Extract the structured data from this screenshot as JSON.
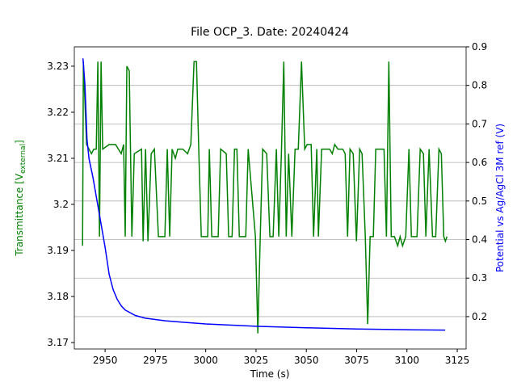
{
  "chart_data": {
    "type": "line",
    "title": "File OCP_3. Date: 20240424",
    "xlabel": "Time (s)",
    "ylabel_parts": [
      "Transmittance [V",
      "external",
      "]"
    ],
    "ylabel_color": "#008000",
    "y2label": "Potential vs Ag/AgCl 3M ref (V)",
    "y2label_color": "#0000ff",
    "xlim": [
      2934.7,
      3129.4
    ],
    "xticks": [
      2950,
      2975,
      3000,
      3025,
      3050,
      3075,
      3100,
      3125
    ],
    "ylim": [
      3.1686,
      3.2342
    ],
    "yticks": [
      3.17,
      3.18,
      3.19,
      3.2,
      3.21,
      3.22,
      3.23
    ],
    "y2lim": [
      0.116,
      0.9
    ],
    "y2ticks": [
      0.2,
      0.3,
      0.4,
      0.5,
      0.6,
      0.7,
      0.8,
      0.9
    ],
    "grid": "y2",
    "series": [
      {
        "name": "Transmittance",
        "color": "#008000",
        "axis": "y",
        "x": [
          2938.8,
          2939.2,
          2940.8,
          2942.0,
          2943.2,
          2944.4,
          2945.6,
          2946.4,
          2947.2,
          2948.0,
          2948.8,
          2952.0,
          2955.2,
          2958.0,
          2959.2,
          2960.0,
          2960.8,
          2962.0,
          2963.3,
          2964.5,
          2968.1,
          2968.9,
          2970.1,
          2971.3,
          2972.9,
          2974.5,
          2976.5,
          2979.7,
          2980.9,
          2982.1,
          2983.3,
          2984.9,
          2986.1,
          2988.6,
          2991.0,
          2992.6,
          2994.2,
          2995.4,
          2996.6,
          2997.8,
          3001.0,
          3001.8,
          3003.0,
          3006.2,
          3007.4,
          3010.2,
          3011.4,
          3013.1,
          3014.3,
          3015.5,
          3016.7,
          3019.9,
          3021.1,
          3024.7,
          3025.9,
          3027.1,
          3028.3,
          3030.3,
          3031.9,
          3033.5,
          3035.1,
          3036.3,
          3037.6,
          3038.8,
          3040.0,
          3041.2,
          3042.8,
          3044.4,
          3046.0,
          3047.6,
          3049.2,
          3050.4,
          3052.4,
          3053.6,
          3055.2,
          3056.0,
          3057.6,
          3059.2,
          3061.6,
          3062.9,
          3064.1,
          3065.7,
          3068.1,
          3069.3,
          3070.5,
          3071.7,
          3073.3,
          3074.9,
          3076.5,
          3077.7,
          3079.3,
          3080.5,
          3081.7,
          3083.3,
          3084.5,
          3086.1,
          3088.6,
          3089.8,
          3091.0,
          3092.2,
          3093.8,
          3095.4,
          3096.6,
          3097.8,
          3099.4,
          3101.0,
          3102.2,
          3105.0,
          3106.6,
          3108.2,
          3109.4,
          3111.0,
          3112.7,
          3114.3,
          3115.9,
          3117.1,
          3118.3,
          3119.1,
          3119.9
        ],
        "values": [
          3.191,
          3.231,
          3.213,
          3.212,
          3.211,
          3.212,
          3.212,
          3.231,
          3.193,
          3.231,
          3.212,
          3.213,
          3.213,
          3.211,
          3.213,
          3.193,
          3.23,
          3.229,
          3.193,
          3.211,
          3.212,
          3.192,
          3.212,
          3.192,
          3.211,
          3.212,
          3.193,
          3.193,
          3.212,
          3.193,
          3.212,
          3.21,
          3.212,
          3.212,
          3.211,
          3.213,
          3.231,
          3.231,
          3.211,
          3.193,
          3.193,
          3.212,
          3.193,
          3.193,
          3.212,
          3.211,
          3.193,
          3.193,
          3.212,
          3.212,
          3.193,
          3.193,
          3.212,
          3.193,
          3.172,
          3.193,
          3.212,
          3.211,
          3.193,
          3.193,
          3.212,
          3.193,
          3.211,
          3.231,
          3.193,
          3.211,
          3.193,
          3.212,
          3.212,
          3.231,
          3.212,
          3.213,
          3.213,
          3.193,
          3.212,
          3.193,
          3.212,
          3.212,
          3.212,
          3.211,
          3.213,
          3.212,
          3.212,
          3.211,
          3.193,
          3.212,
          3.211,
          3.192,
          3.212,
          3.211,
          3.193,
          3.174,
          3.193,
          3.193,
          3.212,
          3.212,
          3.212,
          3.193,
          3.231,
          3.193,
          3.193,
          3.191,
          3.193,
          3.191,
          3.193,
          3.212,
          3.193,
          3.193,
          3.212,
          3.211,
          3.193,
          3.212,
          3.193,
          3.193,
          3.212,
          3.211,
          3.193,
          3.192,
          3.193
        ]
      },
      {
        "name": "Potential",
        "color": "#0000ff",
        "axis": "y2",
        "x": [
          2939,
          2940,
          2941,
          2942,
          2944,
          2946,
          2948,
          2950,
          2952,
          2954,
          2956,
          2958,
          2960,
          2965,
          2970,
          2980,
          2990,
          3000,
          3025,
          3050,
          3075,
          3100,
          3119
        ],
        "values": [
          0.87,
          0.8,
          0.66,
          0.61,
          0.56,
          0.5,
          0.44,
          0.38,
          0.31,
          0.27,
          0.245,
          0.228,
          0.217,
          0.203,
          0.196,
          0.189,
          0.185,
          0.181,
          0.175,
          0.171,
          0.168,
          0.166,
          0.165
        ]
      }
    ]
  }
}
